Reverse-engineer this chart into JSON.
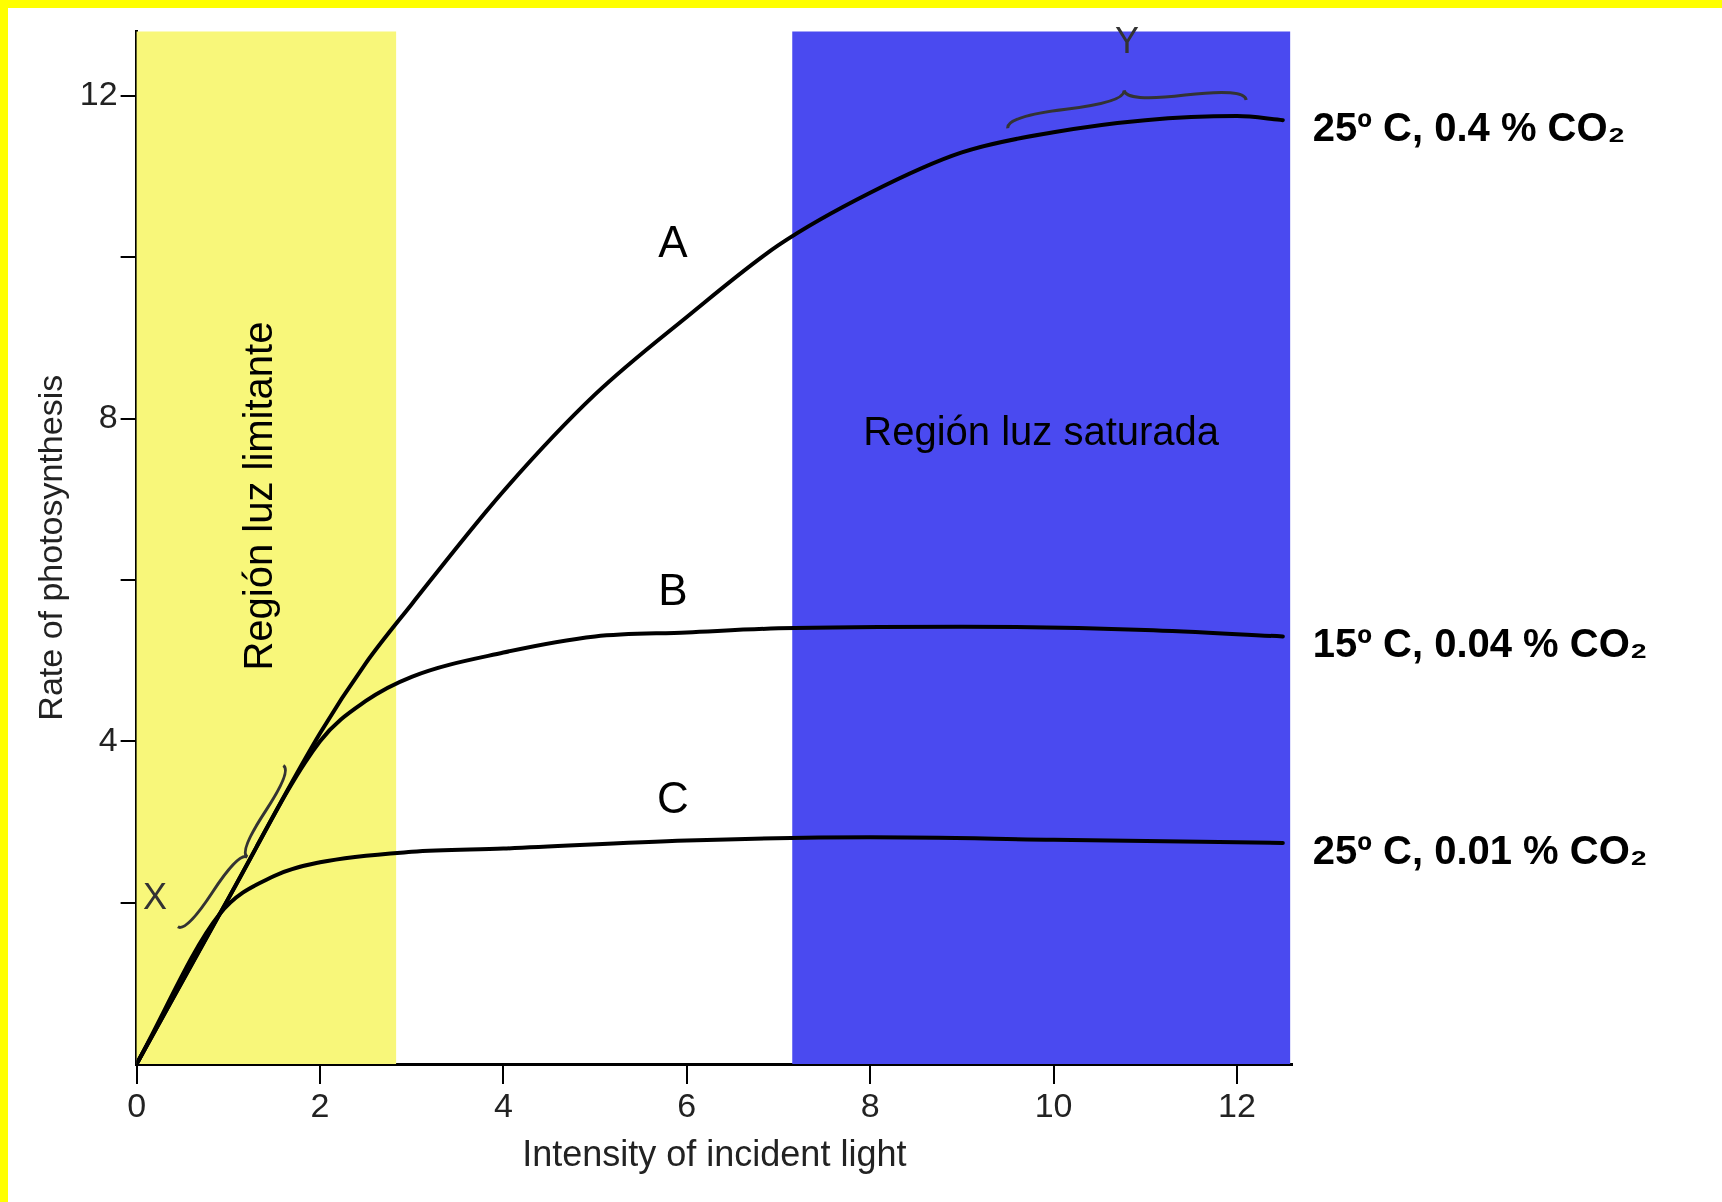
{
  "chart_data": {
    "type": "line",
    "xlabel": "Intensity of incident light",
    "ylabel": "Rate of photosynthesis",
    "xlim": [
      0,
      12.6
    ],
    "ylim": [
      0,
      12.8
    ],
    "xticks": [
      0,
      2,
      4,
      6,
      8,
      10,
      12
    ],
    "yticks": [
      {
        "value": 2,
        "label": null
      },
      4,
      {
        "value": 6,
        "label": null
      },
      8,
      {
        "value": 10,
        "label": null
      },
      12
    ],
    "grid": false,
    "legend": false,
    "marker": "none",
    "line_style": "solid",
    "series": [
      {
        "name": "A",
        "color": "#000000",
        "x": [
          0,
          1,
          2,
          2.5,
          3,
          4,
          5,
          6,
          7,
          8,
          9,
          10,
          11,
          12,
          12.5
        ],
        "values": [
          0,
          2.05,
          4.1,
          4.97,
          5.7,
          7.1,
          8.3,
          9.26,
          10.15,
          10.8,
          11.3,
          11.55,
          11.7,
          11.75,
          11.7
        ]
      },
      {
        "name": "B",
        "color": "#000000",
        "x": [
          0,
          1,
          2,
          2.5,
          3,
          4,
          5,
          6,
          7,
          9,
          11,
          12.5
        ],
        "values": [
          0,
          2.05,
          4.0,
          4.5,
          4.8,
          5.1,
          5.3,
          5.35,
          5.4,
          5.42,
          5.38,
          5.3
        ]
      },
      {
        "name": "C",
        "color": "#000000",
        "x": [
          0,
          0.9,
          1.5,
          2,
          3,
          4,
          6,
          8,
          10,
          12.5
        ],
        "values": [
          0,
          1.85,
          2.33,
          2.5,
          2.63,
          2.67,
          2.77,
          2.81,
          2.78,
          2.74
        ]
      }
    ],
    "bands": [
      {
        "axis": "x",
        "from": 0,
        "to": 2.83,
        "label": "Región luz limitante",
        "color": "#f8f77a"
      },
      {
        "axis": "x",
        "from": 7.15,
        "to": 12.58,
        "label": "Región luz saturada",
        "color": "#4a4af0"
      }
    ],
    "annotations": [
      {
        "text": "25º C, 0.4 % CO₂",
        "x": 12.5,
        "y": 11.7
      },
      {
        "text": "15º C, 0.04 % CO₂",
        "x": 12.5,
        "y": 5.3
      },
      {
        "text": "25º C, 0.01 % CO₂",
        "x": 12.5,
        "y": 2.74
      },
      {
        "text": "X",
        "x": 1.0,
        "y": 2.05
      },
      {
        "text": "Y",
        "x": 10.8,
        "y": 11.6
      }
    ]
  }
}
